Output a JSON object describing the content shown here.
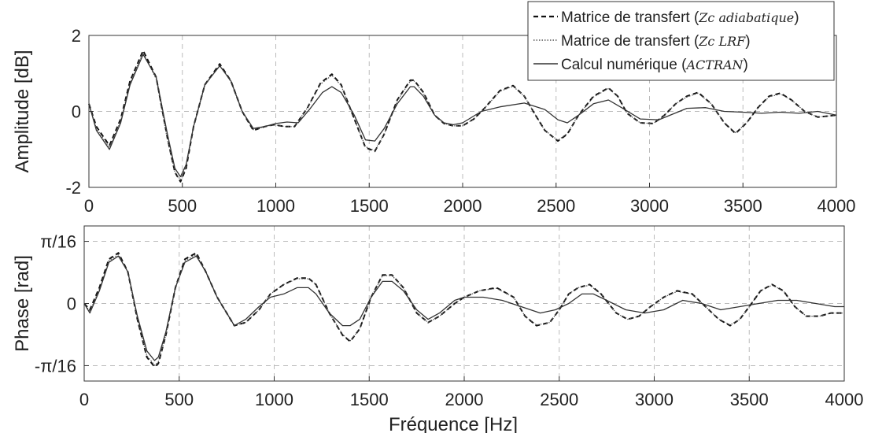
{
  "chart_data": [
    {
      "type": "line",
      "ylabel": "Amplitude [dB]",
      "xlim": [
        0,
        4000
      ],
      "ylim": [
        -2,
        2
      ],
      "xticks": [
        0,
        500,
        1000,
        1500,
        2000,
        2500,
        3000,
        3500,
        4000
      ],
      "xtick_labels": [
        "0",
        "500",
        "1000",
        "1500",
        "2000",
        "2500",
        "3000",
        "3500",
        "4000"
      ],
      "yticks": [
        -2,
        0,
        2
      ],
      "ytick_labels": [
        "-2",
        "0",
        "2"
      ],
      "grid": true,
      "legend_position": "top-right",
      "series": [
        {
          "name": "Matrice de transfert (Zc adiabatique)",
          "name_prefix": "Matrice de transfert (",
          "name_math": "Zc adiabatique",
          "name_suffix": ")",
          "style": "dashed",
          "x": [
            0,
            40,
            110,
            170,
            220,
            290,
            360,
            420,
            460,
            490,
            520,
            560,
            620,
            700,
            760,
            820,
            880,
            940,
            990,
            1050,
            1100,
            1170,
            1240,
            1300,
            1350,
            1420,
            1480,
            1530,
            1580,
            1650,
            1720,
            1740,
            1790,
            1850,
            1900,
            1950,
            2000,
            2060,
            2120,
            2200,
            2270,
            2330,
            2390,
            2440,
            2510,
            2560,
            2620,
            2700,
            2780,
            2830,
            2880,
            2950,
            3020,
            3080,
            3140,
            3200,
            3260,
            3330,
            3400,
            3460,
            3520,
            3580,
            3640,
            3700,
            3760,
            3830,
            3900,
            3960,
            4000
          ],
          "y": [
            0.2,
            -0.4,
            -0.9,
            -0.2,
            0.8,
            1.6,
            0.9,
            -0.7,
            -1.6,
            -1.85,
            -1.5,
            -0.4,
            0.7,
            1.25,
            0.8,
            0,
            -0.5,
            -0.4,
            -0.35,
            -0.4,
            -0.4,
            0.1,
            0.75,
            0.98,
            0.7,
            -0.2,
            -0.95,
            -1.05,
            -0.6,
            0.3,
            0.82,
            0.82,
            0.5,
            -0.1,
            -0.32,
            -0.38,
            -0.38,
            -0.2,
            0.1,
            0.55,
            0.68,
            0.4,
            -0.1,
            -0.5,
            -0.78,
            -0.6,
            -0.1,
            0.4,
            0.62,
            0.4,
            -0.05,
            -0.3,
            -0.32,
            -0.1,
            0.2,
            0.4,
            0.5,
            0.2,
            -0.3,
            -0.58,
            -0.3,
            0.1,
            0.4,
            0.48,
            0.3,
            0,
            -0.15,
            -0.12,
            -0.1
          ]
        },
        {
          "name": "Matrice de transfert (Zc LRF)",
          "name_prefix": "Matrice de transfert (",
          "name_math": "Zc LRF",
          "name_suffix": ")",
          "style": "dotted",
          "x": [
            0,
            40,
            110,
            170,
            220,
            290,
            360,
            420,
            460,
            490,
            520,
            560,
            620,
            700,
            760,
            820,
            880,
            940,
            990,
            1050,
            1100,
            1170,
            1240,
            1300,
            1350,
            1420,
            1480,
            1530,
            1580,
            1650,
            1720,
            1740,
            1790,
            1850,
            1900,
            1950,
            2000,
            2060,
            2120,
            2200,
            2270,
            2330,
            2390,
            2440,
            2510,
            2560,
            2620,
            2700,
            2780,
            2830,
            2880,
            2950,
            3020,
            3080,
            3140,
            3200,
            3260,
            3330,
            3400,
            3460,
            3520,
            3580,
            3640,
            3700,
            3760,
            3830,
            3900,
            3960,
            4000
          ],
          "y": [
            0.2,
            -0.45,
            -0.95,
            -0.25,
            0.75,
            1.55,
            0.85,
            -0.75,
            -1.6,
            -1.8,
            -1.45,
            -0.4,
            0.68,
            1.22,
            0.78,
            0,
            -0.48,
            -0.4,
            -0.35,
            -0.4,
            -0.4,
            0.1,
            0.72,
            0.95,
            0.68,
            -0.2,
            -0.93,
            -1.03,
            -0.6,
            0.28,
            0.8,
            0.8,
            0.48,
            -0.1,
            -0.32,
            -0.38,
            -0.38,
            -0.2,
            0.1,
            0.53,
            0.66,
            0.4,
            -0.1,
            -0.5,
            -0.76,
            -0.58,
            -0.1,
            0.38,
            0.6,
            0.4,
            -0.05,
            -0.3,
            -0.32,
            -0.1,
            0.2,
            0.38,
            0.48,
            0.2,
            -0.3,
            -0.56,
            -0.3,
            0.1,
            0.38,
            0.46,
            0.3,
            0,
            -0.15,
            -0.12,
            -0.1
          ]
        },
        {
          "name": "Calcul numérique (ACTRAN)",
          "name_prefix": "Calcul numérique (",
          "name_math": "ACTRAN",
          "name_suffix": ")",
          "style": "solid",
          "x": [
            0,
            40,
            110,
            170,
            220,
            290,
            360,
            420,
            460,
            490,
            520,
            560,
            620,
            700,
            760,
            820,
            880,
            940,
            1000,
            1060,
            1120,
            1180,
            1250,
            1300,
            1350,
            1420,
            1480,
            1530,
            1580,
            1650,
            1720,
            1740,
            1790,
            1850,
            1900,
            1950,
            2000,
            2100,
            2200,
            2330,
            2440,
            2510,
            2560,
            2620,
            2700,
            2780,
            2850,
            2950,
            3050,
            3200,
            3300,
            3400,
            3500,
            3600,
            3700,
            3800,
            3900,
            4000
          ],
          "y": [
            0.2,
            -0.5,
            -1,
            -0.3,
            0.7,
            1.5,
            0.9,
            -0.6,
            -1.5,
            -1.72,
            -1.4,
            -0.4,
            0.7,
            1.2,
            0.8,
            0,
            -0.45,
            -0.4,
            -0.32,
            -0.28,
            -0.3,
            0.05,
            0.5,
            0.65,
            0.5,
            -0.1,
            -0.75,
            -0.78,
            -0.45,
            0.2,
            0.65,
            0.65,
            0.4,
            -0.1,
            -0.3,
            -0.35,
            -0.3,
            0,
            0.12,
            0.22,
            0.05,
            -0.22,
            -0.3,
            -0.1,
            0.2,
            0.3,
            0.1,
            -0.2,
            -0.22,
            0.08,
            0.1,
            0,
            -0.02,
            -0.05,
            -0.02,
            -0.05,
            0,
            -0.1
          ]
        }
      ]
    },
    {
      "type": "line",
      "xlabel": "Fréquence [Hz]",
      "ylabel": "Phase [rad]",
      "xlim": [
        0,
        4000
      ],
      "ylim": [
        -0.245,
        0.245
      ],
      "xticks": [
        0,
        500,
        1000,
        1500,
        2000,
        2500,
        3000,
        3500,
        4000
      ],
      "xtick_labels": [
        "0",
        "500",
        "1000",
        "1500",
        "2000",
        "2500",
        "3000",
        "3500",
        "4000"
      ],
      "yticks": [
        -0.19635,
        0,
        0.19635
      ],
      "ytick_labels": [
        "-π/16",
        "0",
        "π/16"
      ],
      "grid": true,
      "series": [
        {
          "name": "Matrice de transfert (Zc adiabatique)",
          "style": "dashed",
          "x": [
            0,
            30,
            80,
            130,
            180,
            230,
            280,
            330,
            370,
            390,
            430,
            480,
            530,
            590,
            640,
            700,
            790,
            850,
            920,
            980,
            1050,
            1120,
            1180,
            1220,
            1290,
            1360,
            1400,
            1450,
            1510,
            1570,
            1620,
            1680,
            1750,
            1810,
            1870,
            1950,
            2000,
            2080,
            2170,
            2260,
            2320,
            2380,
            2450,
            2500,
            2550,
            2600,
            2660,
            2720,
            2800,
            2860,
            2920,
            2980,
            3050,
            3120,
            3200,
            3270,
            3340,
            3400,
            3450,
            3500,
            3560,
            3620,
            3680,
            3740,
            3800,
            3870,
            3930,
            3970,
            4000
          ],
          "y": [
            0,
            -0.02,
            0.05,
            0.14,
            0.16,
            0.1,
            -0.05,
            -0.17,
            -0.2,
            -0.19,
            -0.1,
            0.05,
            0.14,
            0.16,
            0.1,
            0.02,
            -0.07,
            -0.06,
            -0.02,
            0.03,
            0.06,
            0.08,
            0.08,
            0.06,
            -0.03,
            -0.1,
            -0.12,
            -0.08,
            0.02,
            0.09,
            0.09,
            0.05,
            -0.03,
            -0.06,
            -0.04,
            0,
            0.02,
            0.04,
            0.05,
            0.02,
            -0.04,
            -0.07,
            -0.06,
            -0.02,
            0.03,
            0.05,
            0.06,
            0.03,
            -0.03,
            -0.05,
            -0.04,
            -0.01,
            0.02,
            0.04,
            0.03,
            -0.01,
            -0.05,
            -0.07,
            -0.05,
            -0.01,
            0.04,
            0.06,
            0.04,
            -0.01,
            -0.04,
            -0.04,
            -0.03,
            -0.03,
            -0.03
          ]
        },
        {
          "name": "Matrice de transfert (Zc LRF)",
          "style": "dotted",
          "x": [
            0,
            30,
            80,
            130,
            180,
            230,
            280,
            330,
            370,
            390,
            430,
            480,
            530,
            590,
            640,
            700,
            790,
            850,
            920,
            980,
            1050,
            1120,
            1180,
            1220,
            1290,
            1360,
            1400,
            1450,
            1510,
            1570,
            1620,
            1680,
            1750,
            1810,
            1870,
            1950,
            2000,
            2080,
            2170,
            2260,
            2320,
            2380,
            2450,
            2500,
            2550,
            2600,
            2660,
            2720,
            2800,
            2860,
            2920,
            2980,
            3050,
            3120,
            3200,
            3270,
            3340,
            3400,
            3450,
            3500,
            3560,
            3620,
            3680,
            3740,
            3800,
            3870,
            3930,
            3970,
            4000
          ],
          "y": [
            0,
            -0.025,
            0.045,
            0.135,
            0.155,
            0.1,
            -0.05,
            -0.165,
            -0.195,
            -0.185,
            -0.1,
            0.05,
            0.135,
            0.155,
            0.1,
            0.02,
            -0.07,
            -0.06,
            -0.02,
            0.03,
            0.06,
            0.078,
            0.078,
            0.06,
            -0.03,
            -0.098,
            -0.118,
            -0.08,
            0.02,
            0.088,
            0.088,
            0.05,
            -0.03,
            -0.06,
            -0.04,
            0,
            0.02,
            0.04,
            0.048,
            0.02,
            -0.04,
            -0.068,
            -0.06,
            -0.02,
            0.03,
            0.05,
            0.058,
            0.03,
            -0.03,
            -0.05,
            -0.04,
            -0.01,
            0.02,
            0.038,
            0.03,
            -0.01,
            -0.05,
            -0.068,
            -0.05,
            -0.01,
            0.04,
            0.058,
            0.04,
            -0.01,
            -0.04,
            -0.04,
            -0.03,
            -0.03,
            -0.03
          ]
        },
        {
          "name": "Calcul numérique (ACTRAN)",
          "style": "solid",
          "x": [
            0,
            30,
            80,
            130,
            180,
            230,
            280,
            330,
            370,
            390,
            430,
            480,
            530,
            590,
            640,
            700,
            790,
            850,
            920,
            980,
            1050,
            1120,
            1180,
            1220,
            1290,
            1360,
            1400,
            1450,
            1510,
            1570,
            1620,
            1680,
            1750,
            1810,
            1870,
            1950,
            2000,
            2100,
            2200,
            2300,
            2400,
            2480,
            2550,
            2620,
            2680,
            2750,
            2850,
            2950,
            3050,
            3150,
            3250,
            3350,
            3450,
            3550,
            3650,
            3750,
            3850,
            3950,
            4000
          ],
          "y": [
            0,
            -0.03,
            0.04,
            0.13,
            0.15,
            0.1,
            -0.04,
            -0.15,
            -0.18,
            -0.17,
            -0.09,
            0.05,
            0.13,
            0.15,
            0.1,
            0.02,
            -0.07,
            -0.05,
            -0.01,
            0.02,
            0.03,
            0.05,
            0.05,
            0.03,
            -0.03,
            -0.07,
            -0.07,
            -0.05,
            0.02,
            0.07,
            0.07,
            0.04,
            -0.02,
            -0.05,
            -0.03,
            0.01,
            0.02,
            0.02,
            0.01,
            -0.01,
            -0.03,
            -0.02,
            0,
            0.03,
            0.03,
            0.01,
            -0.02,
            -0.03,
            -0.02,
            0.01,
            0,
            -0.02,
            -0.01,
            0,
            0.01,
            0.01,
            0,
            -0.01,
            -0.01
          ]
        }
      ]
    }
  ]
}
